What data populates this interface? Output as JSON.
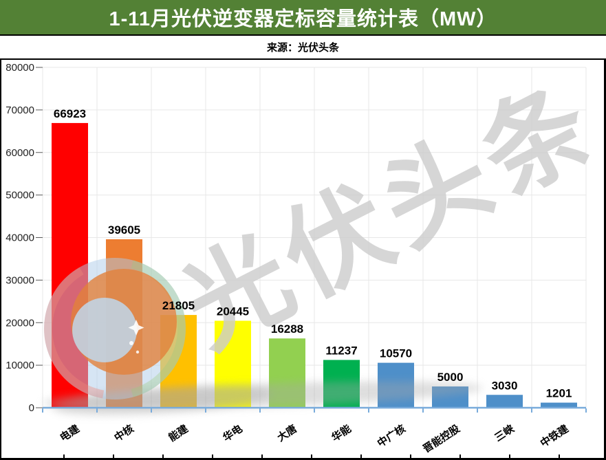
{
  "header": {
    "title": "1-11月光伏逆变器定标容量统计表（MW）",
    "source_label": "来源：光伏头条"
  },
  "watermark": {
    "text": "光伏头条",
    "text_color": "#cccccc",
    "logo_circle_color": "#aecce9",
    "logo_crescent_color": "#e2813b"
  },
  "colors": {
    "title_bar_bg": "#538135",
    "title_text": "#ffffff",
    "axis_line": "#79abdb",
    "gridline": "#e7e7e7",
    "tick": "#595959",
    "value_label": "#000000",
    "axis_label": "#1f1f1f"
  },
  "chart_data": {
    "type": "bar",
    "title": "1-11月光伏逆变器定标容量统计表（MW）",
    "categories": [
      "电建",
      "中核",
      "能建",
      "华电",
      "大唐",
      "华能",
      "中广核",
      "晋能控股",
      "三峡",
      "中铁建"
    ],
    "values": [
      66923,
      39605,
      21805,
      20445,
      16288,
      11237,
      10570,
      5000,
      3030,
      1201
    ],
    "bar_colors": [
      "#ff0000",
      "#ed7d31",
      "#ffc000",
      "#ffff00",
      "#92d050",
      "#00b050",
      "#4e8fc9",
      "#4e8fc9",
      "#4e8fc9",
      "#4e8fc9"
    ],
    "xlabel": "",
    "ylabel": "",
    "ylim": [
      0,
      80000
    ],
    "ytick_interval": 10000,
    "grid": true,
    "value_labels": true,
    "legend": "none"
  }
}
